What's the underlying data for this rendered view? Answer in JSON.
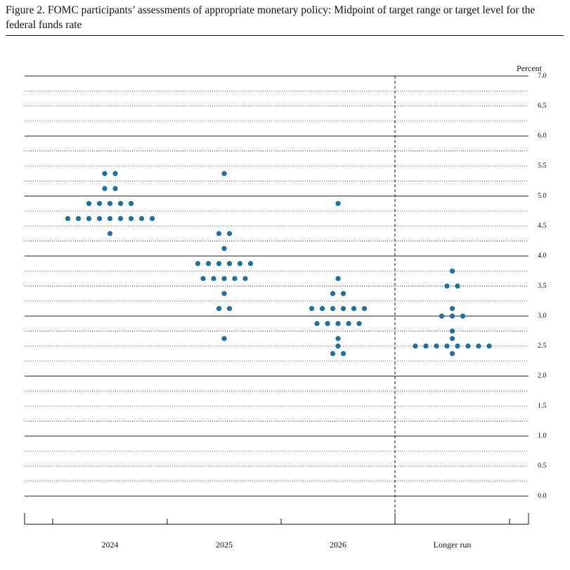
{
  "chart_data": {
    "type": "dot",
    "title": "Figure 2.  FOMC participants’ assessments of appropriate monetary policy: Midpoint of target range or target level for the federal funds rate",
    "y_label": "Percent",
    "categories": [
      "2024",
      "2025",
      "2026",
      "Longer run"
    ],
    "color": "#1f6fa3",
    "values": [
      [
        5.375,
        5.375,
        5.125,
        5.125,
        4.875,
        4.875,
        4.875,
        4.875,
        4.875,
        4.625,
        4.625,
        4.625,
        4.625,
        4.625,
        4.625,
        4.625,
        4.625,
        4.625,
        4.375
      ],
      [
        5.375,
        4.375,
        4.375,
        4.125,
        3.875,
        3.875,
        3.875,
        3.875,
        3.875,
        3.875,
        3.625,
        3.625,
        3.625,
        3.625,
        3.625,
        3.375,
        3.125,
        3.125,
        2.625
      ],
      [
        4.875,
        3.625,
        3.375,
        3.375,
        3.125,
        3.125,
        3.125,
        3.125,
        3.125,
        3.125,
        2.875,
        2.875,
        2.875,
        2.875,
        2.875,
        2.625,
        2.5,
        2.375,
        2.375
      ],
      [
        3.75,
        3.5,
        3.5,
        3.125,
        3.0,
        3.0,
        3.0,
        2.75,
        2.625,
        2.5,
        2.5,
        2.5,
        2.5,
        2.5,
        2.5,
        2.5,
        2.5,
        2.375
      ]
    ],
    "ylim": [
      0,
      7
    ],
    "yticks": [
      {
        "value": 0,
        "label": "0.0"
      },
      0.5,
      {
        "value": 1,
        "label": "1.0"
      },
      1.5,
      {
        "value": 2,
        "label": "2.0"
      },
      2.5,
      {
        "value": 3,
        "label": "3.0"
      },
      3.5,
      {
        "value": 4,
        "label": "4.0"
      },
      4.5,
      {
        "value": 5,
        "label": "5.0"
      },
      5.5,
      {
        "value": 6,
        "label": "6.0"
      },
      6.5,
      {
        "value": 7,
        "label": "7.0"
      }
    ],
    "yminorticks": [
      0.25,
      0.75,
      1.25,
      1.75,
      2.25,
      2.75,
      3.25,
      3.75,
      4.25,
      4.75,
      5.25,
      5.75,
      6.25,
      6.75
    ],
    "grid": true
  }
}
